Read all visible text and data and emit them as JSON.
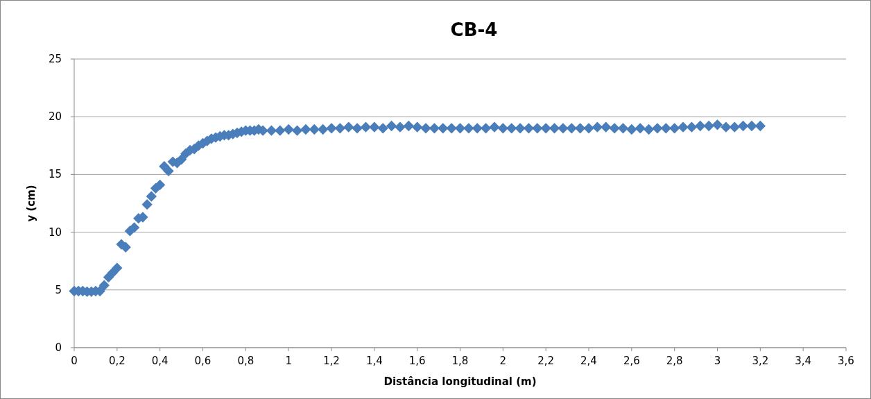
{
  "chart_data": {
    "type": "scatter",
    "title": "CB-4",
    "xlabel": "Distância longitudinal (m)",
    "ylabel": "y (cm)",
    "marker": "diamond",
    "grid": "y",
    "xlim": [
      0,
      3.6
    ],
    "xticks": [
      {
        "value": 0,
        "label": "0"
      },
      {
        "value": 0.2,
        "label": "0,2"
      },
      {
        "value": 0.4,
        "label": "0,4"
      },
      {
        "value": 0.6,
        "label": "0,6"
      },
      {
        "value": 0.8,
        "label": "0,8"
      },
      {
        "value": 1,
        "label": "1"
      },
      {
        "value": 1.2,
        "label": "1,2"
      },
      {
        "value": 1.4,
        "label": "1,4"
      },
      {
        "value": 1.6,
        "label": "1,6"
      },
      {
        "value": 1.8,
        "label": "1,8"
      },
      {
        "value": 2,
        "label": "2"
      },
      {
        "value": 2.2,
        "label": "2,2"
      },
      {
        "value": 2.4,
        "label": "2,4"
      },
      {
        "value": 2.6,
        "label": "2,6"
      },
      {
        "value": 2.8,
        "label": "2,8"
      },
      {
        "value": 3,
        "label": "3"
      },
      {
        "value": 3.2,
        "label": "3,2"
      },
      {
        "value": 3.4,
        "label": "3,4"
      },
      {
        "value": 3.6,
        "label": "3,6"
      }
    ],
    "ylim": [
      0,
      25
    ],
    "yticks": [
      0,
      5,
      10,
      15,
      20,
      25
    ],
    "series": [
      {
        "color": "#4a7ebb",
        "x": [
          0,
          0.02,
          0.04,
          0.06,
          0.08,
          0.1,
          0.12,
          0.14,
          0.16,
          0.18,
          0.2,
          0.22,
          0.24,
          0.26,
          0.28,
          0.3,
          0.32,
          0.34,
          0.36,
          0.38,
          0.4,
          0.42,
          0.44,
          0.46,
          0.48,
          0.5,
          0.52,
          0.54,
          0.56,
          0.58,
          0.6,
          0.62,
          0.64,
          0.66,
          0.68,
          0.7,
          0.72,
          0.74,
          0.76,
          0.78,
          0.8,
          0.82,
          0.84,
          0.86,
          0.88,
          0.92,
          0.96,
          1,
          1.04,
          1.08,
          1.12,
          1.16,
          1.2,
          1.24,
          1.28,
          1.32,
          1.36,
          1.4,
          1.44,
          1.48,
          1.52,
          1.56,
          1.6,
          1.64,
          1.68,
          1.72,
          1.76,
          1.8,
          1.84,
          1.88,
          1.92,
          1.96,
          2,
          2.04,
          2.08,
          2.12,
          2.16,
          2.2,
          2.24,
          2.28,
          2.32,
          2.36,
          2.4,
          2.44,
          2.48,
          2.52,
          2.56,
          2.6,
          2.64,
          2.68,
          2.72,
          2.76,
          2.8,
          2.84,
          2.88,
          2.92,
          2.96,
          3,
          3.04,
          3.08,
          3.12,
          3.16,
          3.2
        ],
        "values": [
          4.9,
          4.9,
          4.9,
          4.85,
          4.85,
          4.9,
          4.9,
          5.4,
          6.1,
          6.5,
          6.9,
          8.95,
          8.7,
          10.1,
          10.4,
          11.2,
          11.3,
          12.4,
          13.1,
          13.8,
          14.1,
          15.7,
          15.3,
          16.1,
          16.0,
          16.3,
          16.8,
          17.1,
          17.2,
          17.5,
          17.7,
          17.9,
          18.1,
          18.2,
          18.3,
          18.4,
          18.4,
          18.5,
          18.6,
          18.7,
          18.8,
          18.8,
          18.8,
          18.9,
          18.8,
          18.8,
          18.8,
          18.9,
          18.8,
          18.9,
          18.9,
          18.9,
          19.0,
          19.0,
          19.1,
          19.0,
          19.1,
          19.1,
          19.0,
          19.2,
          19.1,
          19.2,
          19.1,
          19.0,
          19.0,
          19.0,
          19.0,
          19.0,
          19.0,
          19.0,
          19.0,
          19.1,
          19.0,
          19.0,
          19.0,
          19.0,
          19.0,
          19.0,
          19.0,
          19.0,
          19.0,
          19.0,
          19.0,
          19.1,
          19.1,
          19.0,
          19.0,
          18.9,
          19.0,
          18.9,
          19.0,
          19.0,
          19.0,
          19.1,
          19.1,
          19.2,
          19.2,
          19.3,
          19.1,
          19.1,
          19.2,
          19.2,
          19.2
        ]
      }
    ]
  }
}
